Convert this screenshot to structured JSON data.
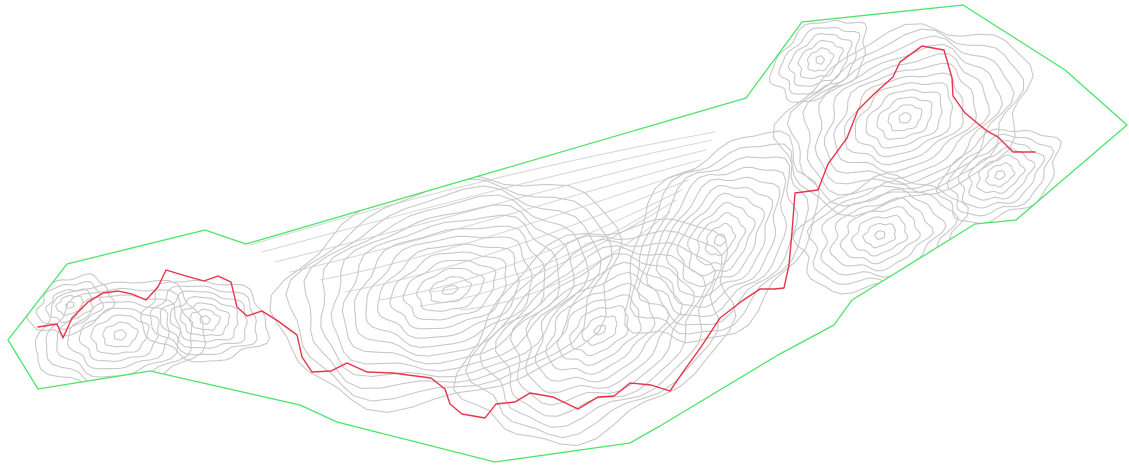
{
  "map": {
    "colors": {
      "background": "#ffffff",
      "boundary": "#4de36b",
      "contour": "#c8c8c8",
      "contour_fan": "#d8d8d8",
      "route": "#e8334a"
    }
  }
}
